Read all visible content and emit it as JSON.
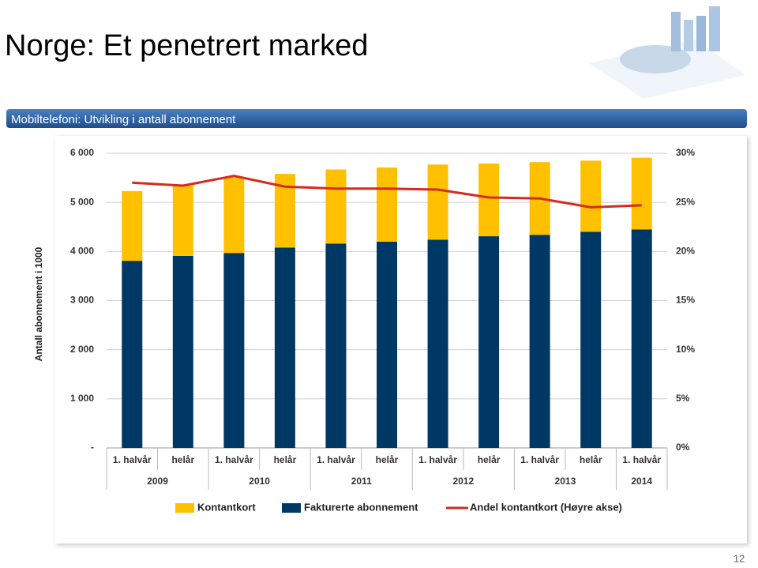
{
  "slide_title": "Norge: Et penetrert marked",
  "banner": "Mobiltelefoni: Utvikling i antall abonnement",
  "page_number": "12",
  "chart_data": {
    "type": "bar",
    "stacked": true,
    "y_label": "Antall abonnement i 1000",
    "categories": [
      "1. halvår",
      "helår",
      "1. halvår",
      "helår",
      "1. halvår",
      "helår",
      "1. halvår",
      "helår",
      "1. halvår",
      "helår",
      "1. halvår"
    ],
    "category_groups": [
      {
        "label": "2009",
        "span": 2
      },
      {
        "label": "2010",
        "span": 2
      },
      {
        "label": "2011",
        "span": 2
      },
      {
        "label": "2012",
        "span": 2
      },
      {
        "label": "2013",
        "span": 2
      },
      {
        "label": "2014",
        "span": 1
      }
    ],
    "series": [
      {
        "name": "Kontantkort",
        "type": "bar",
        "color": "#FFC000",
        "values": [
          1420,
          1430,
          1540,
          1500,
          1510,
          1510,
          1530,
          1480,
          1480,
          1450,
          1460
        ]
      },
      {
        "name": "Fakturerte abonnement",
        "type": "bar",
        "color": "#003865",
        "values": [
          3810,
          3910,
          3970,
          4080,
          4160,
          4200,
          4240,
          4310,
          4340,
          4400,
          4450
        ]
      },
      {
        "name": "Andel kontantkort (Høyre akse)",
        "type": "line",
        "axis": "y2",
        "color": "#D62A1E",
        "values": [
          27.0,
          26.7,
          27.7,
          26.6,
          26.4,
          26.4,
          26.3,
          25.5,
          25.4,
          24.5,
          24.7
        ]
      }
    ],
    "ylim": [
      0,
      6000
    ],
    "yticks": [
      {
        "value": 0,
        "label": "-"
      },
      {
        "value": 1000,
        "label": "1 000"
      },
      {
        "value": 2000,
        "label": "2 000"
      },
      {
        "value": 3000,
        "label": "3 000"
      },
      {
        "value": 4000,
        "label": "4 000"
      },
      {
        "value": 5000,
        "label": "5 000"
      },
      {
        "value": 6000,
        "label": "6 000"
      }
    ],
    "y2lim": [
      0,
      30
    ],
    "y2ticks": [
      {
        "value": 0,
        "label": "0%"
      },
      {
        "value": 5,
        "label": "5%"
      },
      {
        "value": 10,
        "label": "10%"
      },
      {
        "value": 15,
        "label": "15%"
      },
      {
        "value": 20,
        "label": "20%"
      },
      {
        "value": 25,
        "label": "25%"
      },
      {
        "value": 30,
        "label": "30%"
      }
    ],
    "grid": true,
    "legend": "bottom"
  }
}
